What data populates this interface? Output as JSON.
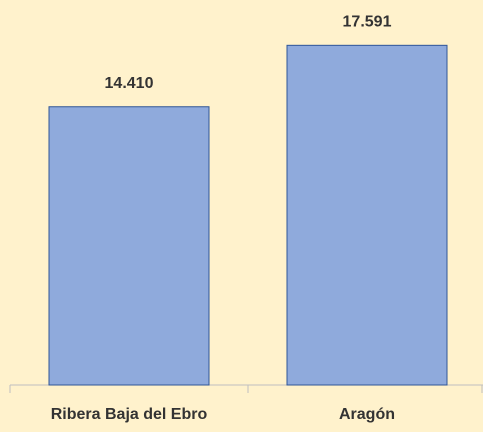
{
  "chart_data": {
    "type": "bar",
    "categories": [
      "Ribera Baja del Ebro",
      "Aragón"
    ],
    "values": [
      14410,
      17591
    ],
    "value_labels": [
      "14.410",
      "17.591"
    ],
    "color": "#8faadc"
  }
}
